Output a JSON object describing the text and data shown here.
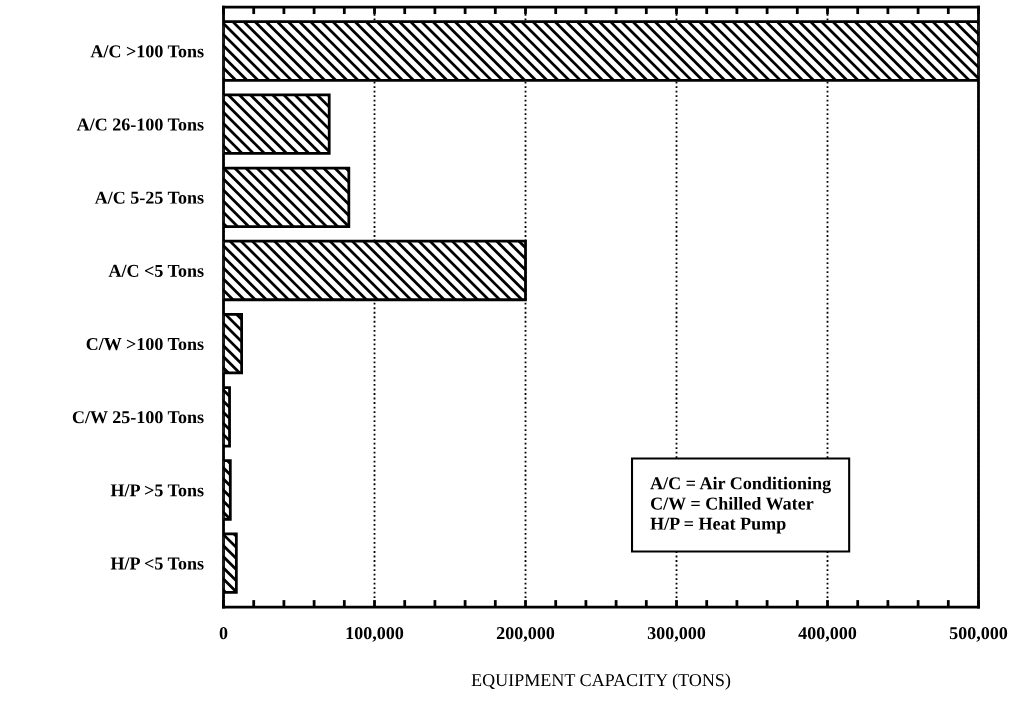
{
  "chart_data": {
    "type": "bar",
    "orientation": "horizontal",
    "xlabel": "EQUIPMENT CAPACITY (TONS)",
    "categories": [
      "A/C >100 Tons",
      "A/C 26-100 Tons",
      "A/C 5-25 Tons",
      "A/C <5 Tons",
      "C/W >100 Tons",
      "C/W 25-100 Tons",
      "H/P >5 Tons",
      "H/P <5 Tons"
    ],
    "values": [
      500000,
      70000,
      83000,
      200000,
      12000,
      4000,
      4500,
      8500
    ],
    "color": "#000000",
    "xlim": [
      0,
      500000
    ],
    "xticks": [
      0,
      {
        "value": 20000,
        "label": null
      },
      {
        "value": 40000,
        "label": null
      },
      {
        "value": 60000,
        "label": null
      },
      {
        "value": 80000,
        "label": null
      },
      {
        "value": 100000,
        "label": "100,000"
      },
      {
        "value": 120000,
        "label": null
      },
      {
        "value": 140000,
        "label": null
      },
      {
        "value": 160000,
        "label": null
      },
      {
        "value": 180000,
        "label": null
      },
      {
        "value": 200000,
        "label": "200,000"
      },
      {
        "value": 220000,
        "label": null
      },
      {
        "value": 240000,
        "label": null
      },
      {
        "value": 260000,
        "label": null
      },
      {
        "value": 280000,
        "label": null
      },
      {
        "value": 300000,
        "label": "300,000"
      },
      {
        "value": 320000,
        "label": null
      },
      {
        "value": 340000,
        "label": null
      },
      {
        "value": 360000,
        "label": null
      },
      {
        "value": 380000,
        "label": null
      },
      {
        "value": 400000,
        "label": "400,000"
      },
      {
        "value": 420000,
        "label": null
      },
      {
        "value": 440000,
        "label": null
      },
      {
        "value": 460000,
        "label": null
      },
      {
        "value": 480000,
        "label": null
      },
      {
        "value": 500000,
        "label": "500,000"
      }
    ],
    "grid": "x",
    "annotations": [
      "A/C = Air Conditioning\nC/W = Chilled Water\nH/P = Heat Pump"
    ]
  }
}
